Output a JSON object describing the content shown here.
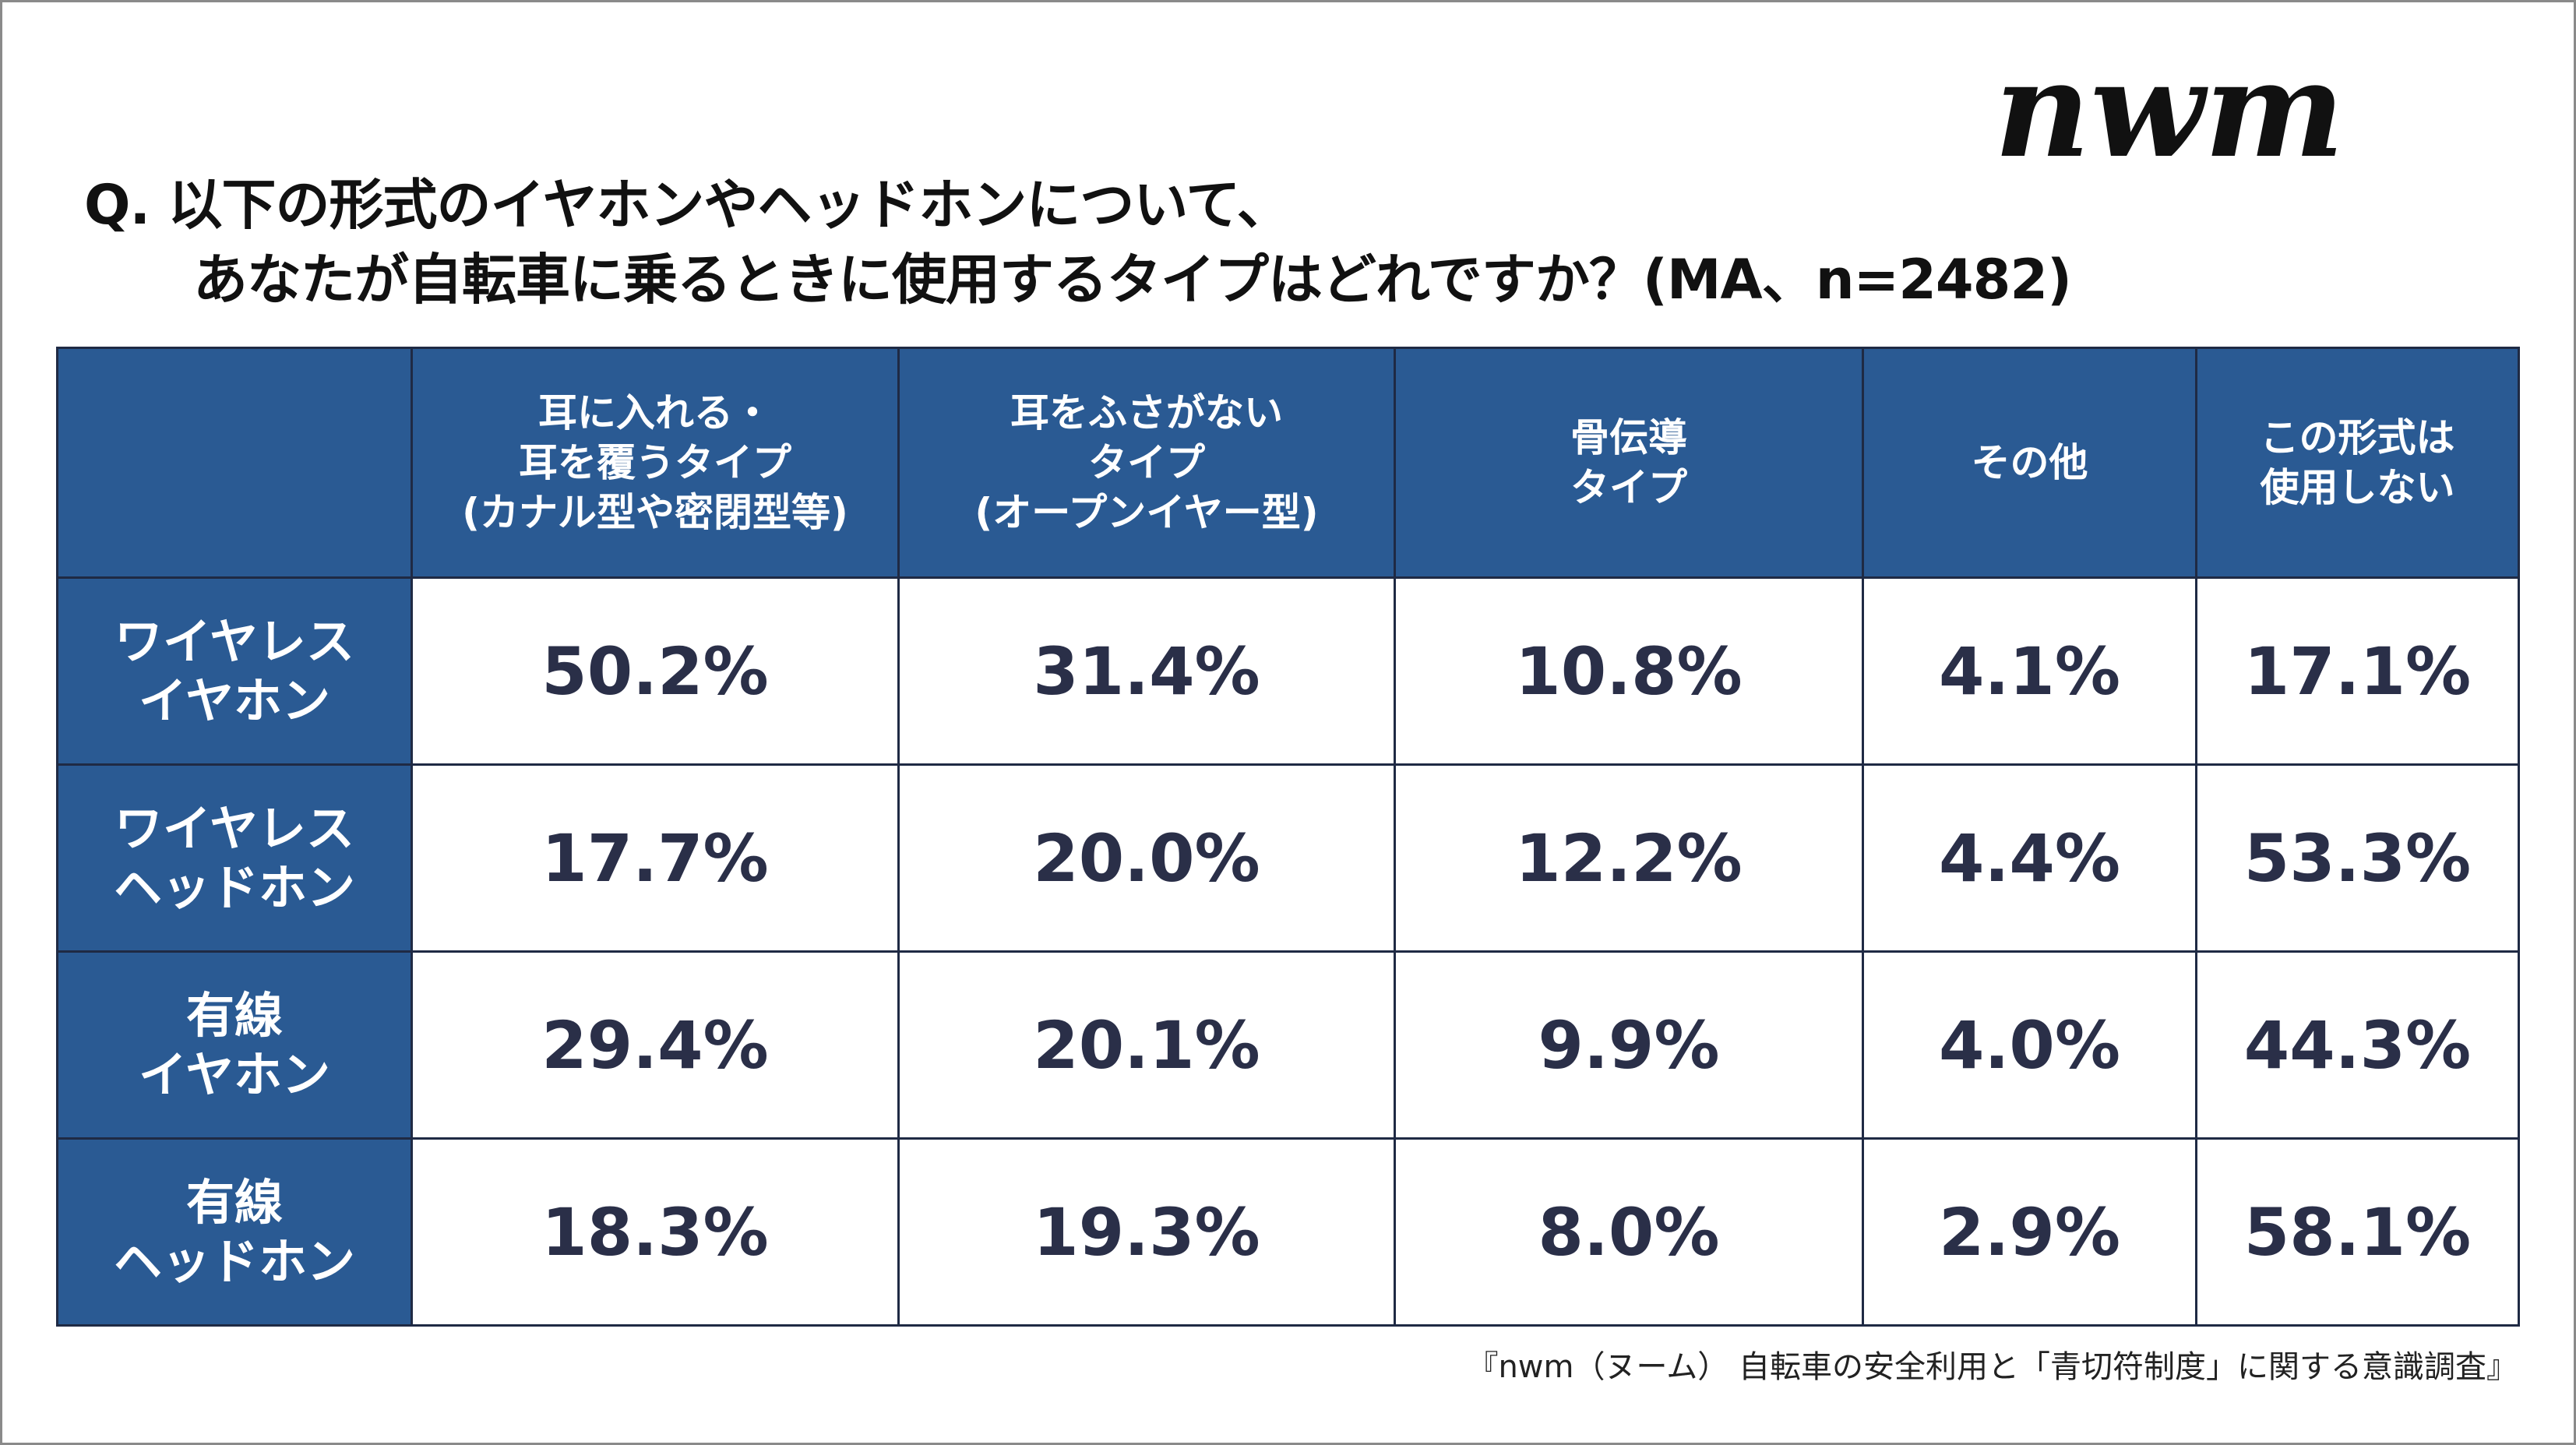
{
  "brand": {
    "logo_text": "nwm"
  },
  "title": {
    "line1": "Q. 以下の形式のイヤホンやヘッドホンについて、",
    "line2": "あなたが自転車に乗るときに使用するタイプはどれですか？(MA、n=2482)"
  },
  "chart_data": {
    "type": "table",
    "columns": [
      "",
      "耳に入れる・\n耳を覆うタイプ\n(カナル型や密閉型等)",
      "耳をふさがない\nタイプ\n(オープンイヤー型)",
      "骨伝導\nタイプ",
      "その他",
      "この形式は\n使用しない"
    ],
    "rows": [
      {
        "label": "ワイヤレス\nイヤホン",
        "cells": [
          "50.2%",
          "31.4%",
          "10.8%",
          "4.1%",
          "17.1%"
        ]
      },
      {
        "label": "ワイヤレス\nヘッドホン",
        "cells": [
          "17.7%",
          "20.0%",
          "12.2%",
          "4.4%",
          "53.3%"
        ]
      },
      {
        "label": "有線\nイヤホン",
        "cells": [
          "29.4%",
          "20.1%",
          "9.9%",
          "4.0%",
          "44.3%"
        ]
      },
      {
        "label": "有線\nヘッドホン",
        "cells": [
          "18.3%",
          "19.3%",
          "8.0%",
          "2.9%",
          "58.1%"
        ]
      }
    ]
  },
  "colors": {
    "header_bg": "#2a5a93",
    "text_dark": "#2a2f48",
    "border": "#1f2a44"
  },
  "footer": {
    "source": "『nwm（ヌーム） 自転車の安全利用と「青切符制度」に関する意識調査』"
  }
}
